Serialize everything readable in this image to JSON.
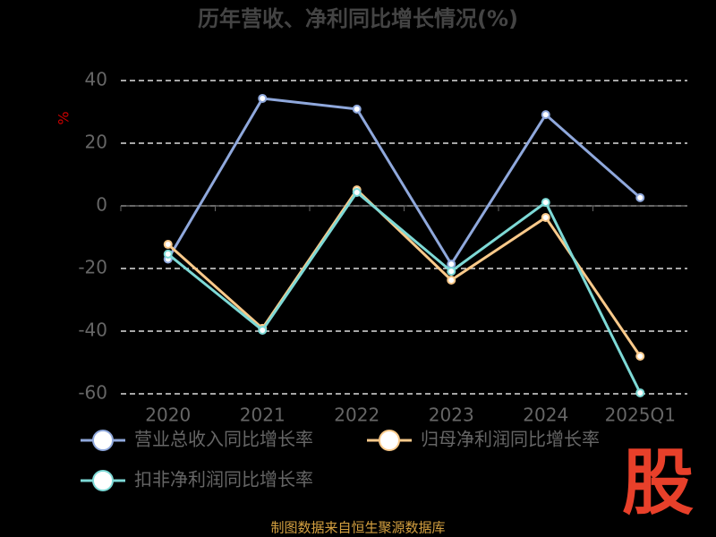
{
  "chart_data": {
    "type": "line",
    "title": "历年营收、净利同比增长情况(%)",
    "y_label": "%",
    "categories": [
      "2020",
      "2021",
      "2022",
      "2023",
      "2024",
      "2025Q1"
    ],
    "series": [
      {
        "name": "营业总收入同比增长率",
        "color": "#8fa8dc",
        "values": [
          -17,
          34.3,
          30.9,
          -18.6,
          29.1,
          2.6
        ]
      },
      {
        "name": "归母净利润同比增长率",
        "color": "#f9c98a",
        "values": [
          -12.3,
          -39.1,
          5.1,
          -23.7,
          -3.7,
          -48
        ]
      },
      {
        "name": "扣非净利润同比增长率",
        "color": "#7dd9d6",
        "values": [
          -15.4,
          -39.7,
          4.3,
          -20.9,
          1.1,
          -59.7
        ]
      }
    ],
    "ylim": [
      -60,
      40
    ],
    "yticks": [
      -60,
      -40,
      -20,
      0,
      20,
      40
    ],
    "grid": true,
    "source": "制图数据来自恒生聚源数据库",
    "logo": "股"
  }
}
